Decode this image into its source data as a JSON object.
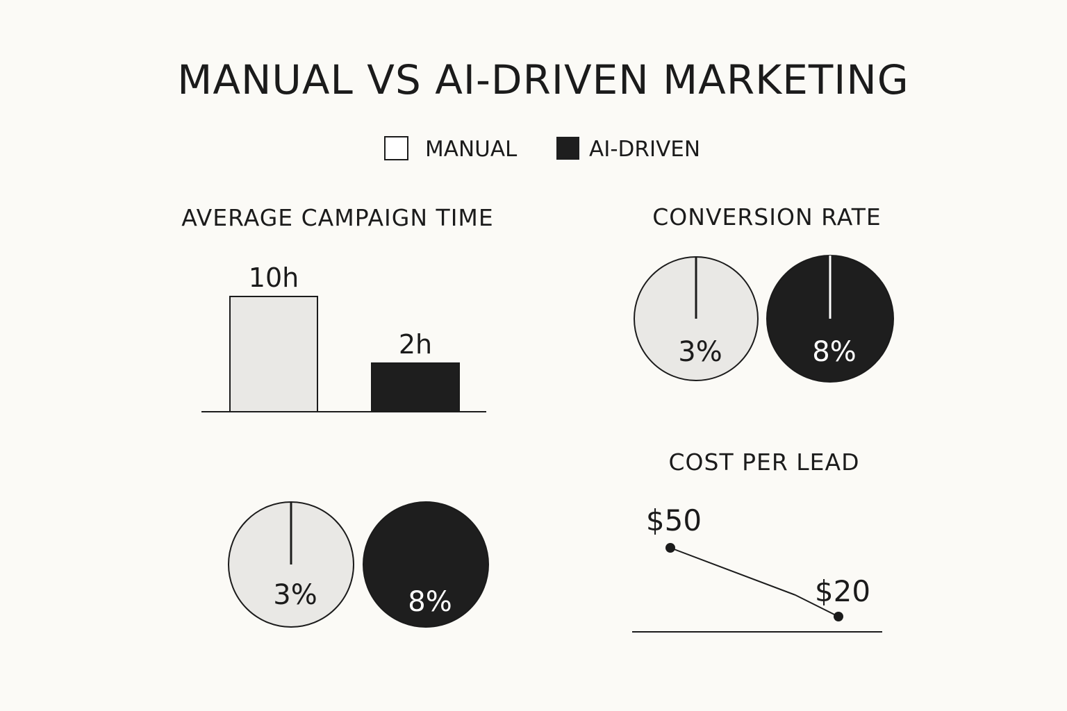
{
  "title": "MANUAL VS AI-DRIVEN MARKETING",
  "legend": [
    {
      "label": "MANUAL",
      "color": "#ffffff"
    },
    {
      "label": "AI-DRIVEN",
      "color": "#1e1e1e"
    }
  ],
  "colors": {
    "manual_fill": "#e9e8e5",
    "ai_fill": "#1e1e1e",
    "background": "#fbfaf6"
  },
  "chart_data": [
    {
      "type": "bar",
      "title": "AVERAGE CAMPAIGN TIME",
      "categories": [
        "Manual",
        "AI-Driven"
      ],
      "values": [
        10,
        2
      ],
      "data_labels": [
        "10h",
        "2h"
      ]
    },
    {
      "type": "pie",
      "title": "CONVERSION RATE",
      "series": [
        {
          "values": [
            3
          ],
          "data_label": "3%"
        },
        {
          "values": [
            8
          ],
          "data_label": "8%"
        }
      ]
    },
    {
      "type": "pie",
      "title": "",
      "series": [
        {
          "values": [
            3
          ],
          "data_label": "3%"
        },
        {
          "values": [
            8
          ],
          "data_label": "8%"
        }
      ]
    },
    {
      "type": "line",
      "title": "COST PER LEAD",
      "categories": [
        "Manual",
        "AI-Driven"
      ],
      "values": [
        50,
        20
      ],
      "data_labels": [
        "$50",
        "$20"
      ]
    }
  ]
}
